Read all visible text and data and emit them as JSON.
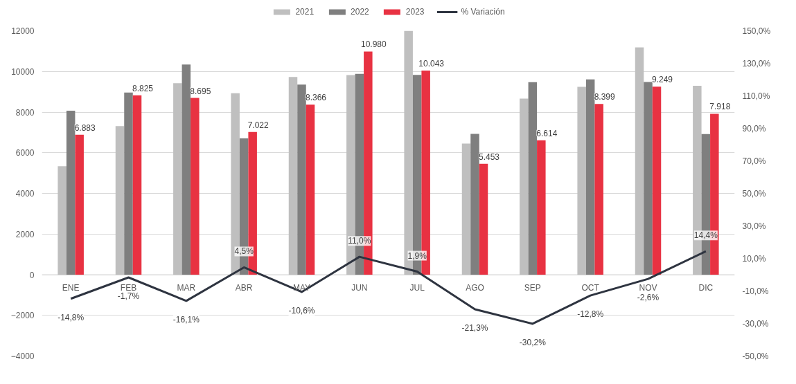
{
  "chart_data": {
    "type": "bar",
    "categories": [
      "ENE",
      "FEB",
      "MAR",
      "ABR",
      "MAY",
      "JUN",
      "JUL",
      "AGO",
      "SEP",
      "OCT",
      "NOV",
      "DIC"
    ],
    "series": [
      {
        "name": "2021",
        "color": "#bfbfbf",
        "values": [
          5340,
          7310,
          9420,
          8930,
          9730,
          9820,
          12000,
          6450,
          8660,
          9240,
          11180,
          9290
        ]
      },
      {
        "name": "2022",
        "color": "#7f7f7f",
        "values": [
          8070,
          8960,
          10340,
          6710,
          9350,
          9880,
          9830,
          6930,
          9470,
          9610,
          9480,
          6920
        ]
      },
      {
        "name": "2023",
        "color": "#e83242",
        "values": [
          6883,
          8825,
          8695,
          7022,
          8366,
          10980,
          10043,
          5453,
          6614,
          8399,
          9249,
          7918
        ],
        "value_labels": [
          "6.883",
          "8.825",
          "8.695",
          "7.022",
          "8.366",
          "10.980",
          "10.043",
          "5.453",
          "6.614",
          "8.399",
          "9.249",
          "7.918"
        ]
      },
      {
        "name": "% Variación",
        "type": "line",
        "axis": "y2",
        "color": "#2e3440",
        "values": [
          -14.8,
          -1.7,
          -16.1,
          4.5,
          -10.6,
          11.0,
          1.9,
          -21.3,
          -30.2,
          -12.8,
          -2.6,
          14.4
        ],
        "value_labels": [
          "-14,8%",
          "-1,7%",
          "-16,1%",
          "4,5%",
          "-10,6%",
          "11,0%",
          "1,9%",
          "-21,3%",
          "-30,2%",
          "-12,8%",
          "-2,6%",
          "14,4%"
        ]
      }
    ],
    "ylim": [
      -4000,
      12000
    ],
    "yticks": [
      -4000,
      -2000,
      0,
      2000,
      4000,
      6000,
      8000,
      10000,
      12000
    ],
    "y2lim": [
      -50,
      150
    ],
    "y2ticks": [
      {
        "value": -50,
        "label": "-50,0%"
      },
      {
        "value": -30,
        "label": "-30,0%"
      },
      {
        "value": -10,
        "label": "-10,0%"
      },
      {
        "value": 10,
        "label": "10,0%"
      },
      {
        "value": 30,
        "label": "30,0%"
      },
      {
        "value": 50,
        "label": "50,0%"
      },
      {
        "value": 70,
        "label": "70,0%"
      },
      {
        "value": 90,
        "label": "90,0%"
      },
      {
        "value": 110,
        "label": "110,0%"
      },
      {
        "value": 130,
        "label": "130,0%"
      },
      {
        "value": 150,
        "label": "150,0%"
      }
    ],
    "grid": "y",
    "legend": "top",
    "line_style": "solid",
    "marker": "none"
  }
}
